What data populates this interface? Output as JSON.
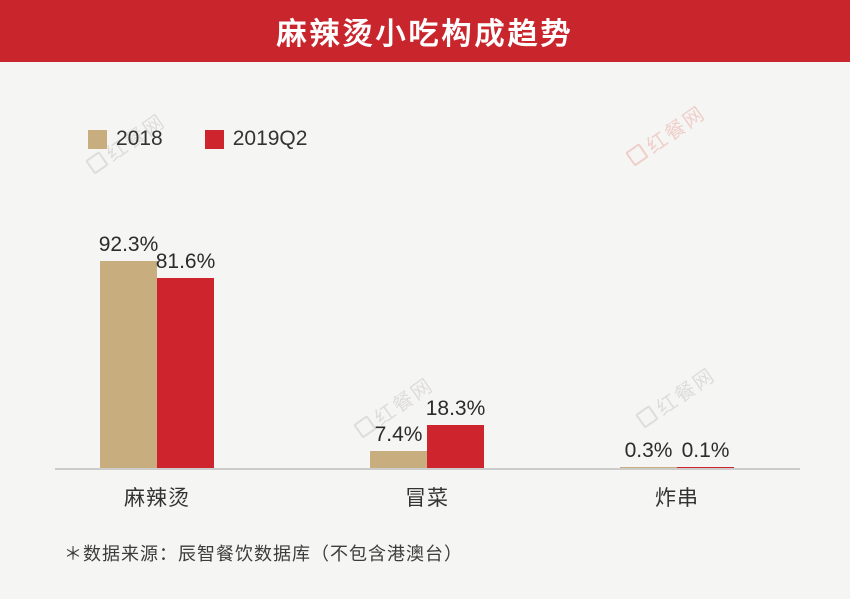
{
  "header": {
    "title": "麻辣烫小吃构成趋势",
    "bg_color": "#c9252d",
    "text_color": "#ffffff"
  },
  "legend": {
    "items": [
      {
        "label": "2018",
        "color": "#c8ad7e"
      },
      {
        "label": "2019Q2",
        "color": "#cd242e"
      }
    ]
  },
  "chart_data": {
    "type": "bar",
    "title": "麻辣烫小吃构成趋势",
    "categories": [
      "麻辣烫",
      "冒菜",
      "炸串"
    ],
    "series": [
      {
        "name": "2018",
        "color": "#c8ad7e",
        "values": [
          92.3,
          7.4,
          0.3
        ]
      },
      {
        "name": "2019Q2",
        "color": "#cd242e",
        "values": [
          81.6,
          18.3,
          0.1
        ]
      }
    ],
    "value_labels": [
      [
        "92.3%",
        "7.4%",
        "0.3%"
      ],
      [
        "81.6%",
        "18.3%",
        "0.1%"
      ]
    ],
    "xlabel": "",
    "ylabel": "",
    "ylim": [
      0,
      100
    ],
    "grid": false,
    "legend_position": "top-left",
    "unit": "%"
  },
  "footnote": "＊数据来源：辰智餐饮数据库（不包含港澳台）",
  "watermark": {
    "text": "红餐网"
  }
}
